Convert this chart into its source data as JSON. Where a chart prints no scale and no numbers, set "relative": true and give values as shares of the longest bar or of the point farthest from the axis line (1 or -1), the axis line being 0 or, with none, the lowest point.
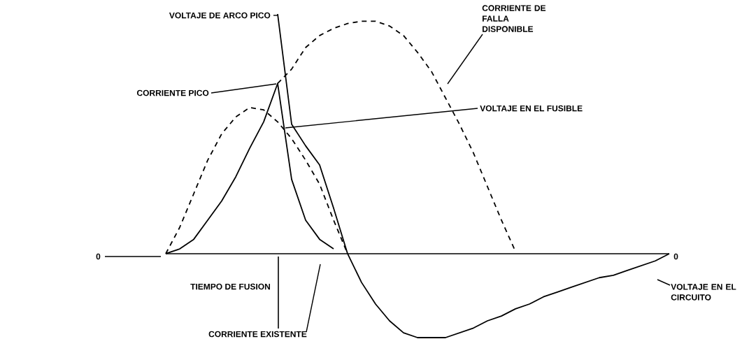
{
  "chart_data": {
    "type": "line",
    "relative": true,
    "categories": [
      null,
      null,
      null,
      null,
      null,
      null,
      null,
      null,
      null,
      null,
      null,
      null,
      null,
      null,
      null,
      null,
      null,
      null,
      null,
      null,
      null,
      null,
      null,
      null,
      null,
      null,
      null,
      null,
      null,
      null,
      null,
      null,
      null,
      null,
      null,
      null,
      null
    ],
    "series": [
      {
        "color": "#000000",
        "line_style": "dashed",
        "values": [
          null,
          null,
          null,
          null,
          null,
          null,
          null,
          null,
          0.71,
          0.77,
          0.86,
          0.91,
          0.94,
          0.96,
          0.97,
          0.97,
          0.95,
          0.91,
          0.84,
          0.76,
          0.65,
          0.54,
          0.42,
          0.28,
          0.14,
          0.01,
          null,
          null,
          null,
          null,
          null,
          null,
          null,
          null,
          null,
          null,
          null
        ]
      },
      {
        "color": "#000000",
        "line_style": "dashed",
        "values": [
          0,
          0.11,
          0.25,
          0.39,
          0.5,
          0.57,
          0.61,
          0.6,
          0.55,
          0.48,
          0.39,
          0.29,
          0.14,
          0,
          null,
          null,
          null,
          null,
          null,
          null,
          null,
          null,
          null,
          null,
          null,
          null,
          null,
          null,
          null,
          null,
          null,
          null,
          null,
          null,
          null,
          null,
          null
        ]
      },
      {
        "color": "#000000",
        "line_style": "solid",
        "values": [
          0,
          0.02,
          0.06,
          0.14,
          0.22,
          0.32,
          0.44,
          0.55,
          0.71,
          0.31,
          0.14,
          0.06,
          0.02,
          null,
          null,
          null,
          null,
          null,
          null,
          null,
          null,
          null,
          null,
          null,
          null,
          null,
          null,
          null,
          null,
          null,
          null,
          null,
          null,
          null,
          null,
          null,
          null
        ]
      },
      {
        "color": "#000000",
        "line_style": "solid",
        "values": [
          null,
          null,
          null,
          null,
          null,
          null,
          null,
          null,
          1.0,
          0.54,
          0.45,
          0.37,
          0.19,
          0,
          -0.12,
          -0.21,
          -0.28,
          -0.33,
          -0.35,
          -0.35,
          -0.35,
          -0.33,
          -0.31,
          -0.28,
          -0.26,
          -0.23,
          -0.21,
          -0.18,
          -0.16,
          -0.14,
          -0.12,
          -0.1,
          -0.09,
          -0.07,
          -0.05,
          -0.03,
          0
        ]
      }
    ],
    "annotations": [
      "VOLTAJE DE ARCO PICO",
      "CORRIENTE DE FALLA\nDISPONIBLE",
      "CORRIENTE PICO",
      "VOLTAJE EN EL FUSIBLE",
      "0",
      "0",
      "TIEMPO DE FUSION",
      "VOLTAJE EN EL\nCIRCUITO",
      "CORRIENTE EXISTENTE"
    ]
  }
}
